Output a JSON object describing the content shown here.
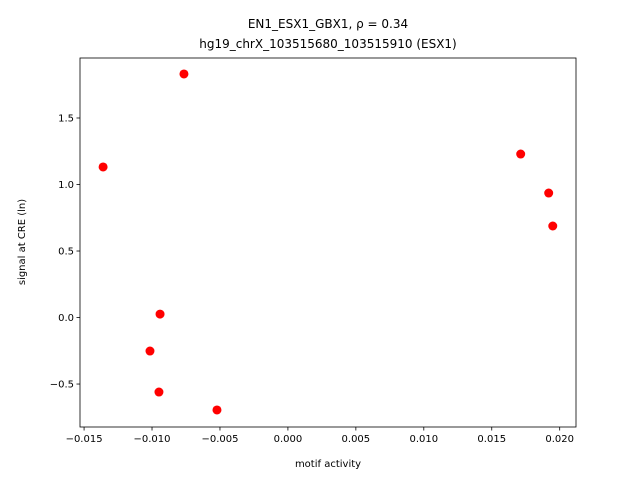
{
  "chart_data": {
    "type": "scatter",
    "title": "EN1_ESX1_GBX1, ρ = 0.34",
    "subtitle": "hg19_chrX_103515680_103515910 (ESX1)",
    "x_label": "motif activity",
    "y_label": "signal at CRE (ln)",
    "color": "#ff0000",
    "x": [
      -0.00765,
      -0.0136,
      0.01713,
      0.01919,
      0.01949,
      -0.00941,
      -0.01015,
      -0.00949,
      -0.00522
    ],
    "values": [
      1.831,
      1.132,
      1.229,
      0.936,
      0.688,
      0.026,
      -0.252,
      -0.56,
      -0.695
    ],
    "xlim": [
      -0.0153,
      0.0212
    ],
    "ylim": [
      -0.823,
      1.951
    ],
    "xticks": [
      {
        "value": -0.015,
        "label": "−0.015"
      },
      {
        "value": -0.01,
        "label": "−0.010"
      },
      {
        "value": -0.005,
        "label": "−0.005"
      },
      {
        "value": 0,
        "label": "0.000"
      },
      {
        "value": 0.005,
        "label": "0.005"
      },
      {
        "value": 0.01,
        "label": "0.010"
      },
      {
        "value": 0.015,
        "label": "0.015"
      },
      {
        "value": 0.02,
        "label": "0.020"
      }
    ],
    "yticks": [
      {
        "value": -0.5,
        "label": "−0.5"
      },
      {
        "value": 0,
        "label": "0.0"
      },
      0.5,
      {
        "value": 1,
        "label": "1.0"
      },
      1.5
    ]
  }
}
